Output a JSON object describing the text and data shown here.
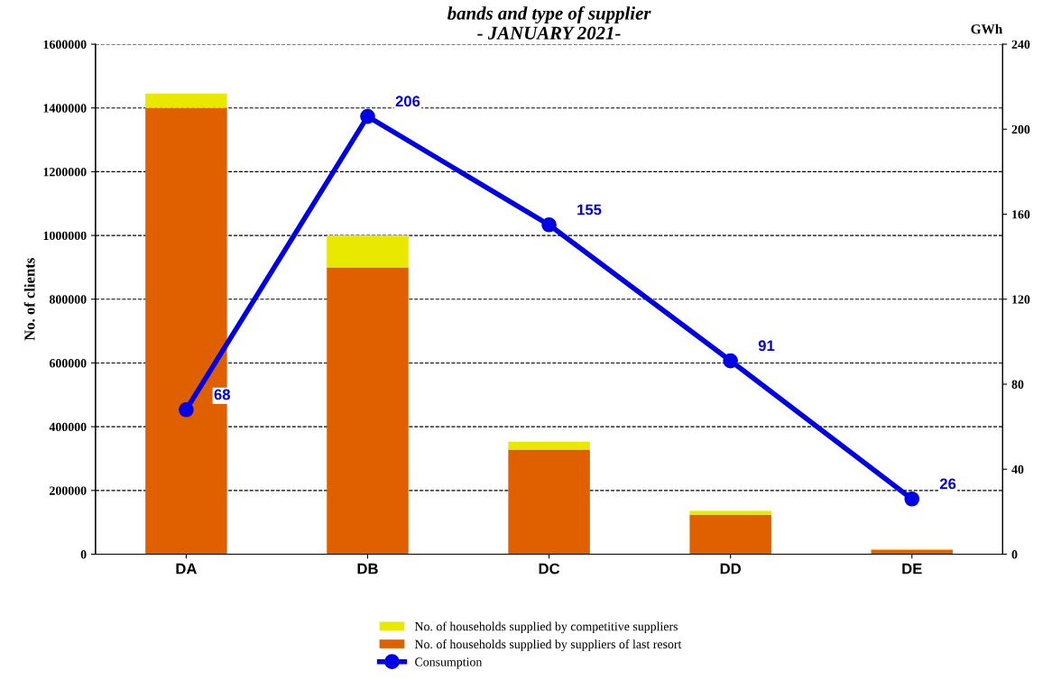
{
  "chart_data": {
    "type": "bar",
    "title": "bands and type of supplier\n- JANUARY 2021-",
    "ylabel": "No. of clients",
    "y2label": "GWh",
    "categories": [
      "DA",
      "DB",
      "DC",
      "DD",
      "DE"
    ],
    "stacked": true,
    "series": [
      {
        "name": "No. of households supplied by suppliers of last resort",
        "color": "#e06000",
        "values": [
          1400000,
          900000,
          328000,
          124000,
          14000
        ]
      },
      {
        "name": "No. of households supplied by competitive suppliers",
        "color": "#e8e800",
        "values": [
          45000,
          100000,
          25000,
          12000,
          2000
        ]
      },
      {
        "name": "Consumption",
        "type": "line",
        "axis": "y2",
        "color": "#0000e6",
        "marker": "circle",
        "values": [
          68,
          206,
          155,
          91,
          26
        ],
        "value_labels": [
          "68",
          "206",
          "155",
          "91",
          "26"
        ]
      }
    ],
    "ylim": [
      0,
      1600000
    ],
    "yticks": [
      0,
      200000,
      400000,
      600000,
      800000,
      1000000,
      1200000,
      1400000,
      1600000
    ],
    "y2lim": [
      0,
      240
    ],
    "y2ticks": [
      0,
      40,
      80,
      120,
      160,
      200,
      240
    ],
    "grid": "y",
    "legend": "bottom"
  }
}
